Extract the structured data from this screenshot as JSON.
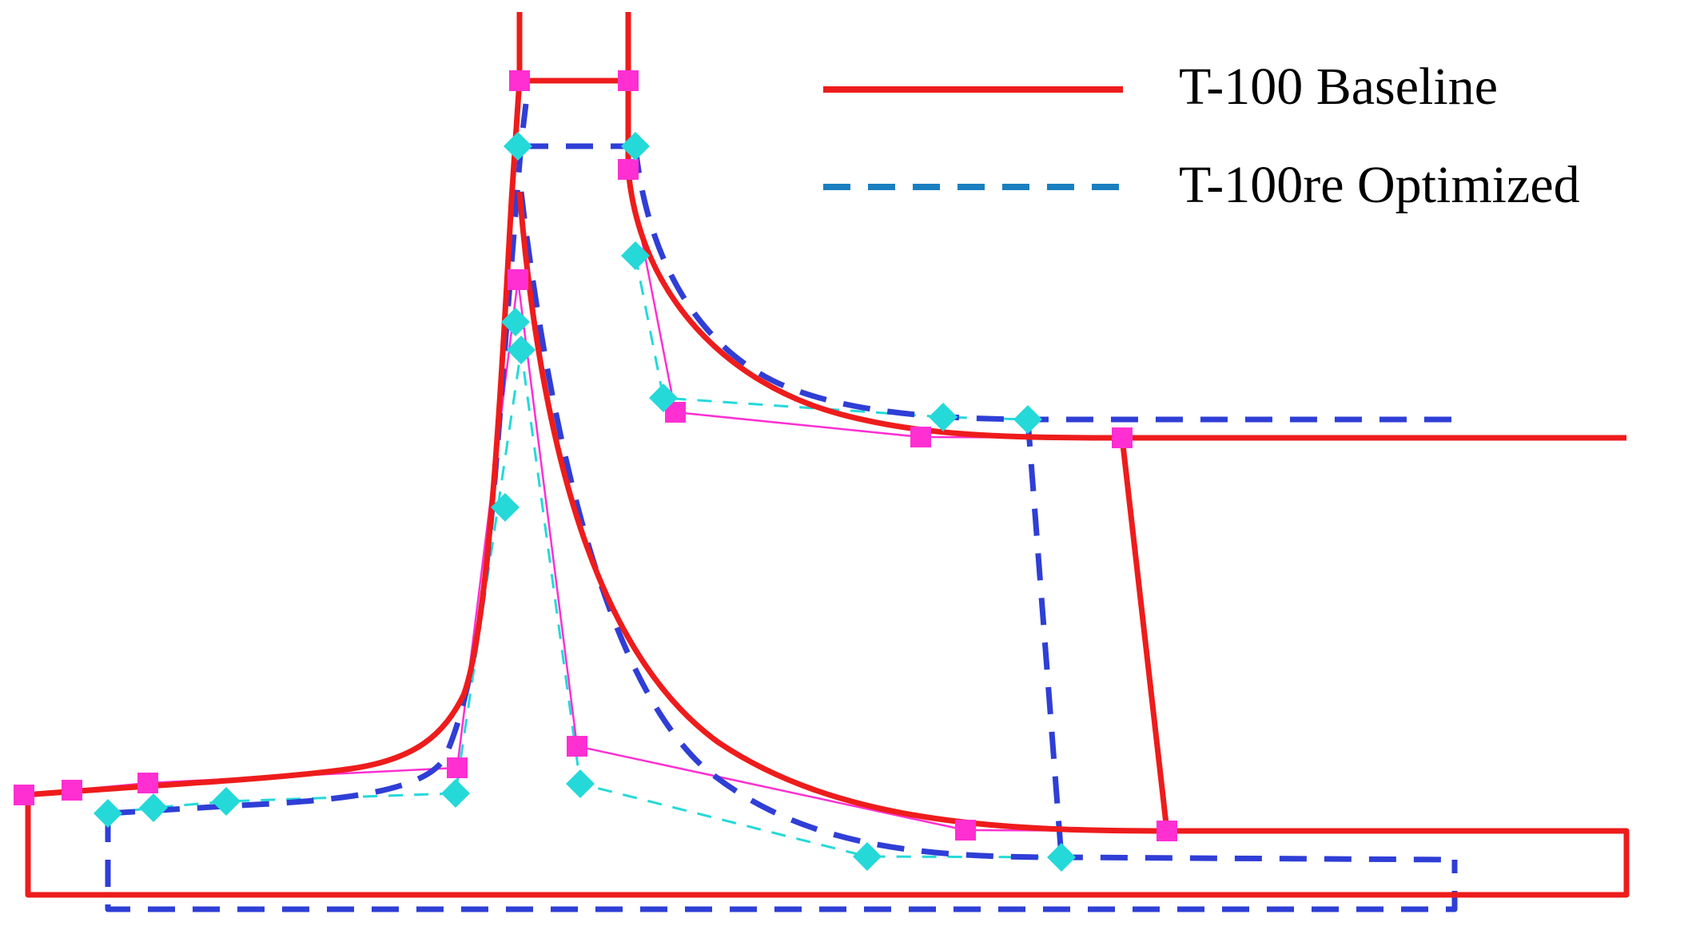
{
  "legend": {
    "baseline_label": "T-100 Baseline",
    "optimized_label": "T-100re Optimized"
  },
  "colors": {
    "baseline": "#ee1c1c",
    "optimized": "#2f3ed6",
    "optimized_legend": "#1a7fc0",
    "baseline_control": "#ff2fd2",
    "optimized_control": "#25d9d9",
    "background": "#ffffff"
  },
  "series": [
    {
      "name": "T-100 Baseline",
      "style": "solid"
    },
    {
      "name": "T-100re Optimized",
      "style": "dashed"
    }
  ]
}
